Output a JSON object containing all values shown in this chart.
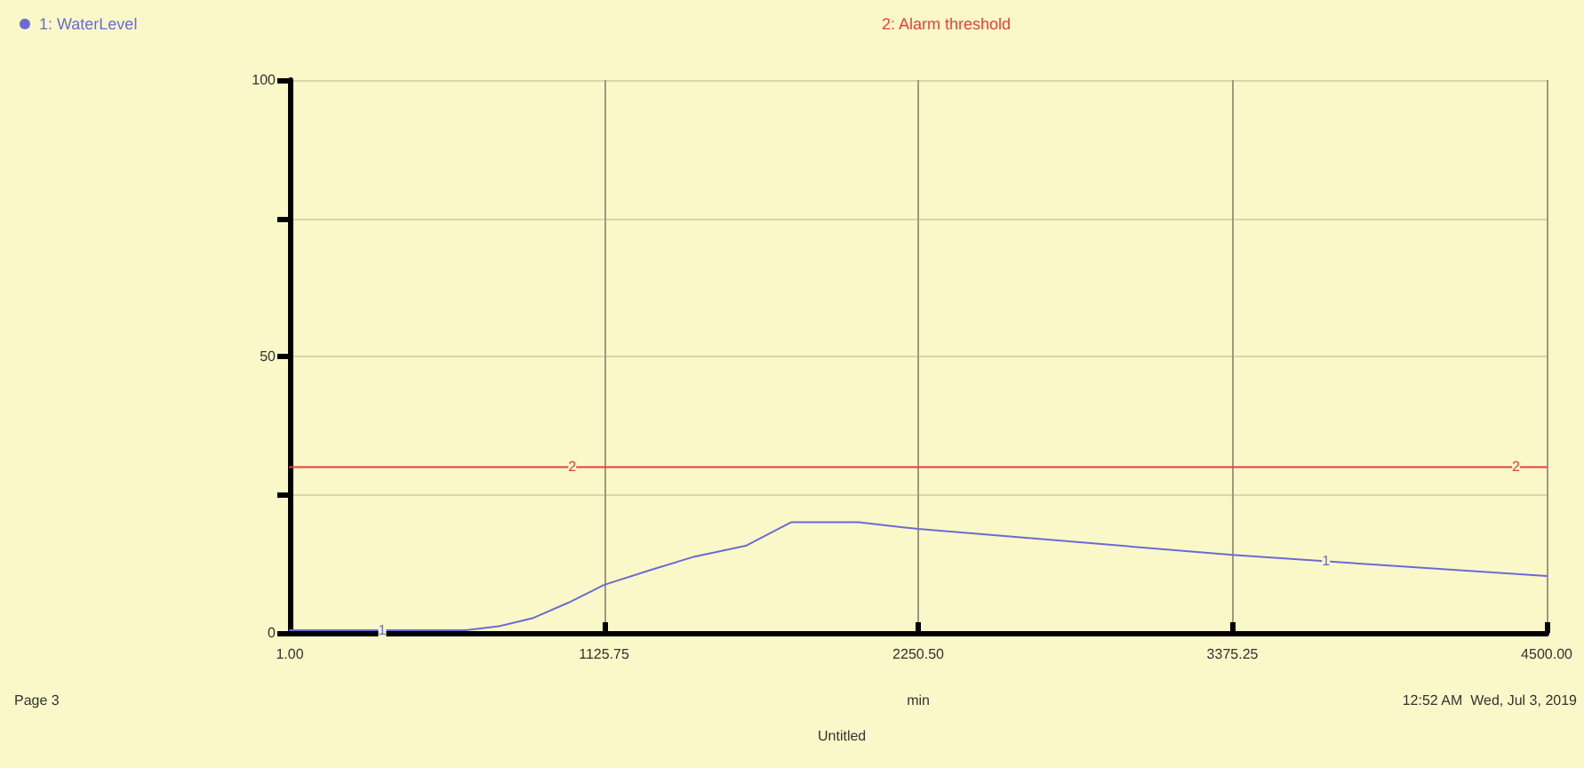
{
  "chart_data": {
    "type": "line",
    "xlabel": "min",
    "xlim": [
      1,
      4500
    ],
    "xticks": [
      {
        "value": 1,
        "label": "1.00"
      },
      {
        "value": 1125.75,
        "label": "1125.75"
      },
      {
        "value": 2250.5,
        "label": "2250.50"
      },
      {
        "value": 3375.25,
        "label": "3375.25"
      },
      {
        "value": 4500,
        "label": "4500.00"
      }
    ],
    "ylim": [
      0,
      100
    ],
    "yticks": [
      0,
      {
        "value": 25,
        "label": null
      },
      50,
      {
        "value": 75,
        "label": null
      },
      100
    ],
    "grid": true,
    "legend": "top",
    "marker": "none",
    "line_style": "solid",
    "series": [
      {
        "name": "1: WaterLevel",
        "color": "#6b6bd6",
        "x": [
          1,
          300,
          631,
          750,
          873,
          1000,
          1127,
          1300,
          1450,
          1636,
          1795,
          2037,
          2250,
          2800,
          3375,
          3900,
          4500
        ],
        "values": [
          0.5,
          0.5,
          0.5,
          1.2,
          2.7,
          5.5,
          8.7,
          11.5,
          13.8,
          15.8,
          20,
          20,
          18.8,
          16.5,
          14.1,
          12.3,
          10.3
        ]
      },
      {
        "name": "2: Alarm threshold",
        "color": "#e8403a",
        "x": [
          1,
          4500
        ],
        "values": [
          30,
          30
        ]
      }
    ],
    "annotations": [
      {
        "text": "1",
        "x": 332,
        "y": 0.5
      },
      {
        "text": "1",
        "x": 3710,
        "y": 13
      },
      {
        "text": "2",
        "x": 1012,
        "y": 30
      },
      {
        "text": "2",
        "x": 4390,
        "y": 30
      },
      "Page 3",
      "Untitled",
      "12:52 AM  Wed, Jul 3, 2019"
    ]
  }
}
